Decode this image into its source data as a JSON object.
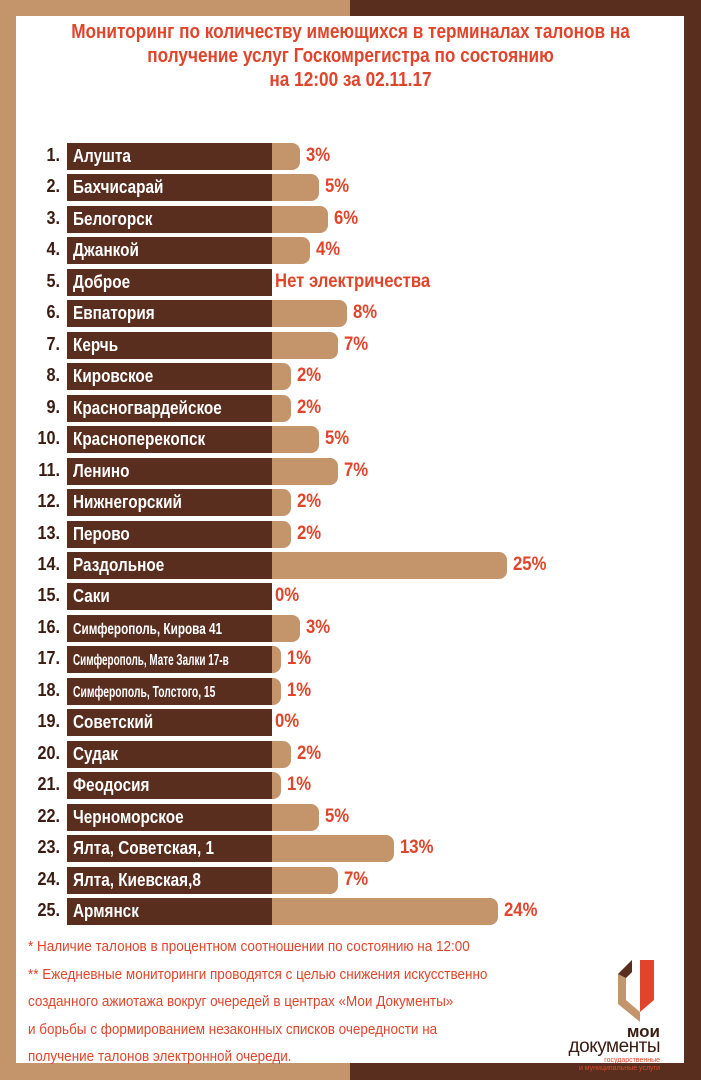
{
  "title": {
    "line1": "Мониторинг по количеству имеющихся в терминалах талонов на",
    "line2": "получение услуг Госкомрегистра по состоянию",
    "line3": "на 12:00 за 02.11.17"
  },
  "colors": {
    "dark": "#5a2e1f",
    "tan": "#c4956b",
    "accent": "#e0452b"
  },
  "chart_data": {
    "type": "bar",
    "orientation": "horizontal",
    "title": "Мониторинг по количеству имеющихся в терминалах талонов на получение услуг Госкомрегистра по состоянию на 12:00 за 02.11.17",
    "unit": "%",
    "rows": [
      {
        "num": "1.",
        "name": "Алушта",
        "value": 3,
        "label": "3%"
      },
      {
        "num": "2.",
        "name": "Бахчисарай",
        "value": 5,
        "label": "5%"
      },
      {
        "num": "3.",
        "name": "Белогорск",
        "value": 6,
        "label": "6%"
      },
      {
        "num": "4.",
        "name": "Джанкой",
        "value": 4,
        "label": "4%"
      },
      {
        "num": "5.",
        "name": "Доброе",
        "value": null,
        "label": "Нет электричества"
      },
      {
        "num": "6.",
        "name": "Евпатория",
        "value": 8,
        "label": "8%"
      },
      {
        "num": "7.",
        "name": "Керчь",
        "value": 7,
        "label": "7%"
      },
      {
        "num": "8.",
        "name": "Кировское",
        "value": 2,
        "label": "2%"
      },
      {
        "num": "9.",
        "name": "Красногвардейское",
        "value": 2,
        "label": "2%"
      },
      {
        "num": "10.",
        "name": "Красноперекопск",
        "value": 5,
        "label": "5%"
      },
      {
        "num": "11.",
        "name": "Ленино",
        "value": 7,
        "label": "7%"
      },
      {
        "num": "12.",
        "name": "Нижнегорский",
        "value": 2,
        "label": "2%"
      },
      {
        "num": "13.",
        "name": "Перово",
        "value": 2,
        "label": "2%"
      },
      {
        "num": "14.",
        "name": "Раздольное",
        "value": 25,
        "label": "25%"
      },
      {
        "num": "15.",
        "name": "Саки",
        "value": 0,
        "label": "0%"
      },
      {
        "num": "16.",
        "name": "Симферополь, Кирова 41",
        "value": 3,
        "label": "3%"
      },
      {
        "num": "17.",
        "name": "Симферополь, Мате Залки 17-в",
        "value": 1,
        "label": "1%"
      },
      {
        "num": "18.",
        "name": "Симферополь, Толстого, 15",
        "value": 1,
        "label": "1%"
      },
      {
        "num": "19.",
        "name": "Советский",
        "value": 0,
        "label": "0%"
      },
      {
        "num": "20.",
        "name": "Судак",
        "value": 2,
        "label": "2%"
      },
      {
        "num": "21.",
        "name": "Феодосия",
        "value": 1,
        "label": "1%"
      },
      {
        "num": "22.",
        "name": "Черноморское",
        "value": 5,
        "label": "5%"
      },
      {
        "num": "23.",
        "name": "Ялта, Советская, 1",
        "value": 13,
        "label": "13%"
      },
      {
        "num": "24.",
        "name": "Ялта, Киевская,8",
        "value": 7,
        "label": "7%"
      },
      {
        "num": "25.",
        "name": "Армянск",
        "value": 24,
        "label": "24%"
      }
    ],
    "xlim": [
      0,
      25
    ]
  },
  "notes": {
    "n1": "* Наличие талонов в процентном соотношении по состоянию на 12:00",
    "n2": "** Ежедневные мониторинги проводятся с целью снижения искусственно",
    "n3": "созданного ажиотажа вокруг очередей в центрах «Мои Документы»",
    "n4": "и борьбы с формированием незаконных списков очередности на",
    "n5": "получение талонов электронной очереди."
  },
  "logo": {
    "word1": "мои",
    "word2": "документы",
    "sub1": "государственные",
    "sub2": "и муниципальные услуги"
  }
}
